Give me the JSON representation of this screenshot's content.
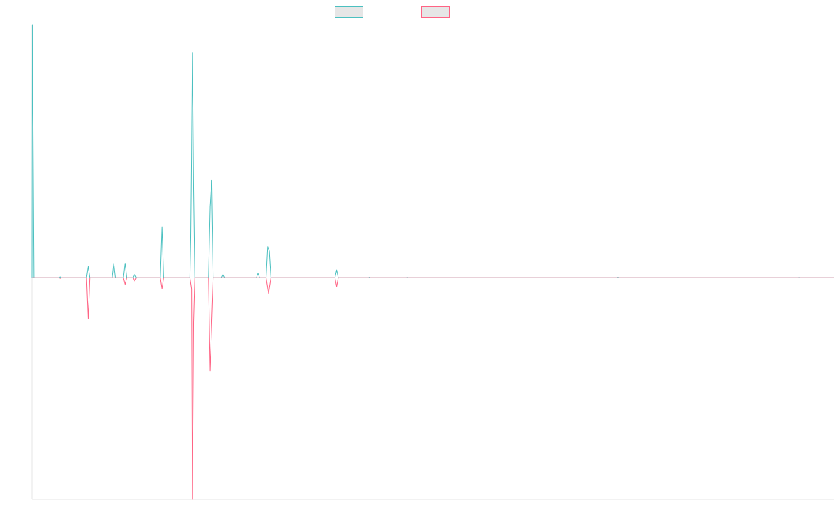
{
  "chart_data": {
    "type": "line",
    "title": "",
    "xlabel": "",
    "ylabel": "",
    "xlim": [
      0,
      100
    ],
    "ylim": [
      -1,
      1.14
    ],
    "grid": false,
    "legend_position": "top-center",
    "series": [
      {
        "name": "",
        "color": "#4bc0c0",
        "fill": "#e6e6e6",
        "points": [
          [
            0,
            0
          ],
          [
            0.05,
            1.14
          ],
          [
            0.25,
            0
          ],
          [
            3.4,
            0
          ],
          [
            3.5,
            0.004
          ],
          [
            3.6,
            0
          ],
          [
            6.8,
            0
          ],
          [
            7.0,
            0.05
          ],
          [
            7.2,
            0
          ],
          [
            10.0,
            0
          ],
          [
            10.2,
            0.065
          ],
          [
            10.4,
            0
          ],
          [
            11.4,
            0
          ],
          [
            11.6,
            0.065
          ],
          [
            11.8,
            0
          ],
          [
            12.6,
            0
          ],
          [
            12.8,
            0.015
          ],
          [
            13.0,
            0
          ],
          [
            16.0,
            0
          ],
          [
            16.2,
            0.23
          ],
          [
            16.4,
            0
          ],
          [
            19.7,
            0
          ],
          [
            19.8,
            0.18
          ],
          [
            19.9,
            0.55
          ],
          [
            20.0,
            1.015
          ],
          [
            20.15,
            0.4
          ],
          [
            20.3,
            0
          ],
          [
            22.0,
            0
          ],
          [
            22.2,
            0.32
          ],
          [
            22.4,
            0.44
          ],
          [
            22.6,
            0
          ],
          [
            23.6,
            0
          ],
          [
            23.8,
            0.015
          ],
          [
            24.0,
            0
          ],
          [
            28.0,
            0
          ],
          [
            28.2,
            0.02
          ],
          [
            28.4,
            0
          ],
          [
            29.2,
            0
          ],
          [
            29.4,
            0.14
          ],
          [
            29.6,
            0.12
          ],
          [
            29.8,
            0
          ],
          [
            37.8,
            0
          ],
          [
            38.0,
            0.035
          ],
          [
            38.2,
            0
          ],
          [
            42.0,
            0
          ],
          [
            42.1,
            0.002
          ],
          [
            42.2,
            0
          ],
          [
            46.7,
            0
          ],
          [
            46.8,
            0.002
          ],
          [
            46.9,
            0
          ],
          [
            73.0,
            0
          ],
          [
            73.1,
            0.002
          ],
          [
            73.2,
            0
          ],
          [
            95.6,
            0
          ],
          [
            95.7,
            0.002
          ],
          [
            95.8,
            0
          ],
          [
            100,
            0
          ]
        ]
      },
      {
        "name": "",
        "color": "#ff6384",
        "fill": "#e6e6e6",
        "points": [
          [
            0,
            0
          ],
          [
            3.4,
            0
          ],
          [
            3.5,
            -0.003
          ],
          [
            3.6,
            0
          ],
          [
            6.8,
            0
          ],
          [
            7.0,
            -0.185
          ],
          [
            7.2,
            0
          ],
          [
            11.4,
            0
          ],
          [
            11.6,
            -0.03
          ],
          [
            11.8,
            0
          ],
          [
            12.6,
            0
          ],
          [
            12.8,
            -0.015
          ],
          [
            13.0,
            0
          ],
          [
            16.0,
            0
          ],
          [
            16.2,
            -0.05
          ],
          [
            16.4,
            0
          ],
          [
            19.7,
            0
          ],
          [
            19.9,
            -0.05
          ],
          [
            20.0,
            -1.0
          ],
          [
            20.15,
            -0.2
          ],
          [
            20.3,
            0
          ],
          [
            22.0,
            0
          ],
          [
            22.2,
            -0.42
          ],
          [
            22.5,
            -0.1
          ],
          [
            22.6,
            0
          ],
          [
            29.2,
            0
          ],
          [
            29.5,
            -0.07
          ],
          [
            29.8,
            0
          ],
          [
            37.8,
            0
          ],
          [
            38.0,
            -0.04
          ],
          [
            38.2,
            0
          ],
          [
            100,
            0
          ]
        ]
      }
    ]
  }
}
